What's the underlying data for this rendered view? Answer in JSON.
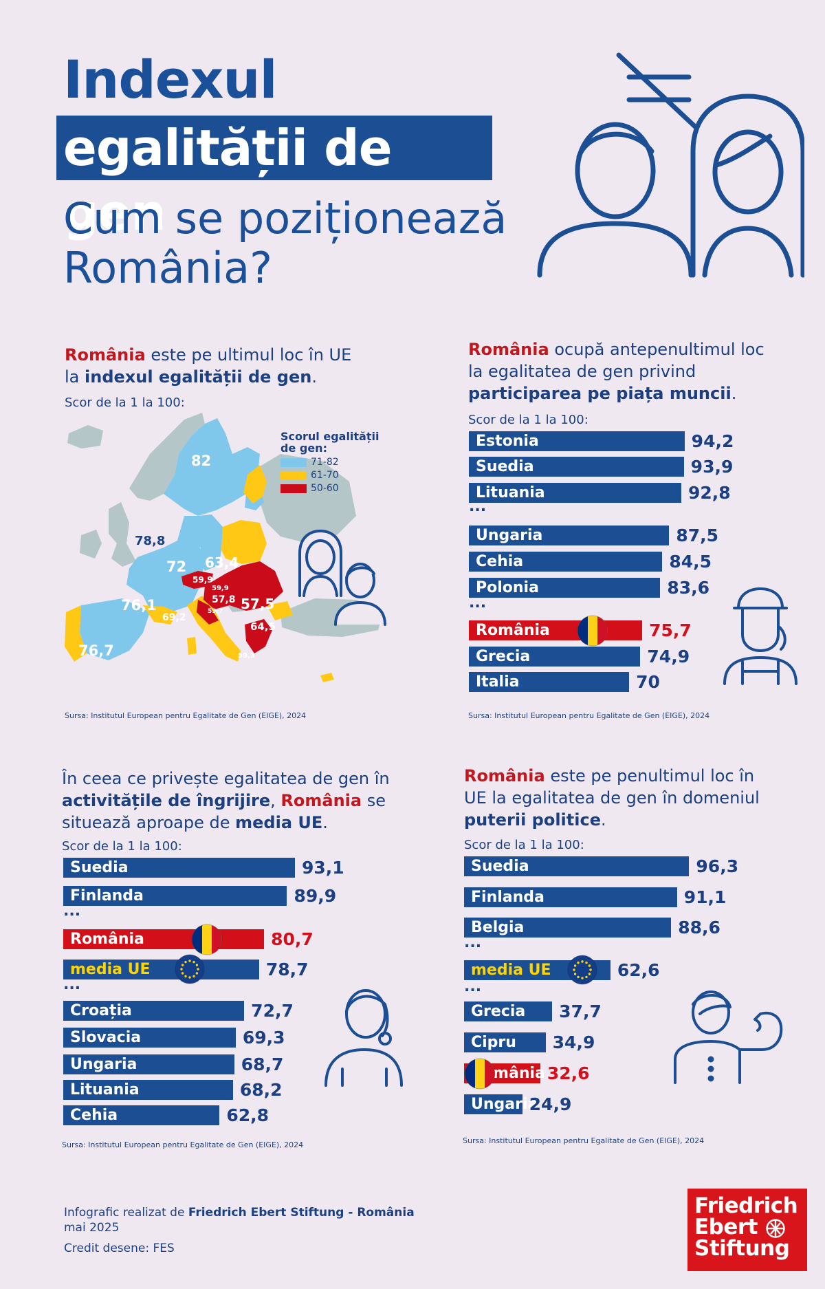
{
  "title": {
    "line1": "Indexul",
    "line2": "egalității de gen",
    "subtitle_1": "Cum se poziționează",
    "subtitle_2": "România?"
  },
  "colors": {
    "navy": "#1b4e93",
    "red": "#d3101a",
    "light_blue": "#7fc8ec",
    "yellow": "#ffc815",
    "map_red": "#c90b1a",
    "grey": "#b4c6c8",
    "background": "#f0e8f1"
  },
  "icons": [
    "not-equal-icon",
    "man-icon",
    "woman-icon",
    "worker-woman-icon",
    "caregiver-woman-icon",
    "strong-woman-icon",
    "romania-flag-icon",
    "eu-flag-icon"
  ],
  "panel1": {
    "intro_1": "România",
    "intro_2": " este pe ultimul loc în UE",
    "intro_3": "la ",
    "intro_4": "indexul egalității de gen",
    "intro_5": ".",
    "scor": "Scor de la 1 la 100:",
    "legend_title": "Scorul egalității de gen:",
    "source": "Sursa: Institutul European pentru Egalitate de Gen (EIGE), 2024"
  },
  "panel2": {
    "intro_1": "România",
    "intro_2": " ocupă antepenultimul loc",
    "intro_3": "la egalitatea de gen privind",
    "intro_4": "participarea pe piața muncii",
    "intro_5": ".",
    "scor": "Scor de la 1 la 100:",
    "source": "Sursa: Institutul European pentru Egalitate de Gen (EIGE), 2024"
  },
  "panel3": {
    "intro_1": "În ceea ce privește egalitatea de gen în",
    "intro_2": "activitățile de îngrijire",
    "intro_3": ", ",
    "intro_4": "România",
    "intro_5": " se",
    "intro_6": "situează aproape de ",
    "intro_7": "media UE",
    "intro_8": ".",
    "scor": "Scor de la 1 la 100:",
    "source": "Sursa: Institutul European pentru Egalitate de Gen (EIGE), 2024"
  },
  "panel4": {
    "intro_1": "România",
    "intro_2": " este pe penultimul loc în",
    "intro_3": "UE la egalitatea de gen în domeniul",
    "intro_4": "puterii politice",
    "intro_5": ".",
    "scor": "Scor de la 1 la 100:",
    "source": "Sursa: Institutul European pentru Egalitate de Gen (EIGE), 2024"
  },
  "chart_data": [
    {
      "type": "map",
      "legend": [
        {
          "label": "71-82",
          "color": "#7fc8ec"
        },
        {
          "label": "61-70",
          "color": "#ffc815"
        },
        {
          "label": "50-60",
          "color": "#c90b1a"
        }
      ],
      "labels": [
        "82",
        "78,8",
        "72",
        "63,4",
        "76,1",
        "69,2",
        "59,9",
        "59,9",
        "57,8",
        "59,7",
        "57,5",
        "64,5",
        "76,7",
        "59,3"
      ]
    },
    {
      "type": "bar",
      "orientation": "horizontal",
      "xlim": [
        0,
        100
      ],
      "separator": "...",
      "categories": [
        "Estonia",
        "Suedia",
        "Lituania",
        "...",
        "Ungaria",
        "Cehia",
        "Polonia",
        "...",
        "România",
        "Grecia",
        "Italia"
      ],
      "values": [
        94.2,
        93.9,
        92.8,
        null,
        87.5,
        84.5,
        83.6,
        null,
        75.7,
        74.9,
        70
      ],
      "value_labels": [
        "94,2",
        "93,9",
        "92,8",
        "",
        "87,5",
        "84,5",
        "83,6",
        "",
        "75,7",
        "74,9",
        "70"
      ],
      "highlight": "România"
    },
    {
      "type": "bar",
      "orientation": "horizontal",
      "xlim": [
        0,
        100
      ],
      "separator": "...",
      "categories": [
        "Suedia",
        "Finlanda",
        "...",
        "România",
        "media UE",
        "...",
        "Croația",
        "Slovacia",
        "Ungaria",
        "Lituania",
        "Cehia"
      ],
      "values": [
        93.1,
        89.9,
        null,
        80.7,
        78.7,
        null,
        72.7,
        69.3,
        68.7,
        68.2,
        62.8
      ],
      "value_labels": [
        "93,1",
        "89,9",
        "",
        "80,7",
        "78,7",
        "",
        "72,7",
        "69,3",
        "68,7",
        "68,2",
        "62,8"
      ],
      "highlight": "România"
    },
    {
      "type": "bar",
      "orientation": "horizontal",
      "xlim": [
        0,
        100
      ],
      "separator": "...",
      "categories": [
        "Suedia",
        "Finlanda",
        "Belgia",
        "...",
        "media UE",
        "...",
        "Grecia",
        "Cipru",
        "România",
        "Ungaria"
      ],
      "values": [
        96.3,
        91.1,
        88.6,
        null,
        62.6,
        null,
        37.7,
        34.9,
        32.6,
        24.9
      ],
      "value_labels": [
        "96,3",
        "91,1",
        "88,6",
        "",
        "62,6",
        "",
        "37,7",
        "34,9",
        "32,6",
        "24,9"
      ],
      "highlight": "România"
    }
  ],
  "footer": {
    "line1a": "Infografic realizat de ",
    "line1b": "Friedrich Ebert Stiftung - România",
    "line2": "mai 2025",
    "line3": "Credit desene: FES",
    "logo_1": "Friedrich",
    "logo_2": "Ebert",
    "logo_3": "Stiftung"
  }
}
